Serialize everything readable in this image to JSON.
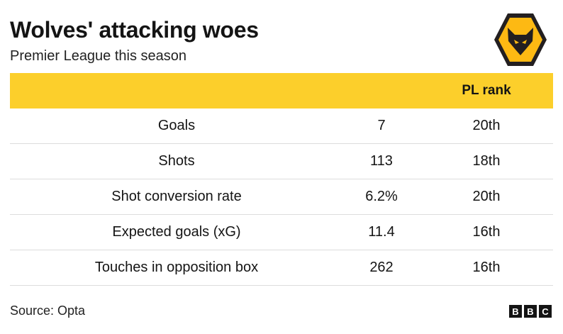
{
  "header": {
    "title": "Wolves' attacking woes",
    "subtitle": "Premier League this season"
  },
  "logo": {
    "icon": "wolf-head-crest-icon",
    "colors": [
      "#231f20",
      "#fdb913"
    ]
  },
  "colors": {
    "header_band": "#fccf2b",
    "row_divider": "#dddddd"
  },
  "chart_data": {
    "type": "table",
    "title": "Wolves' attacking woes",
    "subtitle": "Premier League this season",
    "columns": [
      "",
      "",
      "PL rank"
    ],
    "rows": [
      {
        "metric": "Goals",
        "value": "7",
        "rank": "20th"
      },
      {
        "metric": "Shots",
        "value": "113",
        "rank": "18th"
      },
      {
        "metric": "Shot conversion rate",
        "value": "6.2%",
        "rank": "20th"
      },
      {
        "metric": "Expected goals (xG)",
        "value": "11.4",
        "rank": "16th"
      },
      {
        "metric": "Touches in opposition box",
        "value": "262",
        "rank": "16th"
      }
    ]
  },
  "footer": {
    "source": "Source: Opta",
    "brand": [
      "B",
      "B",
      "C"
    ]
  }
}
